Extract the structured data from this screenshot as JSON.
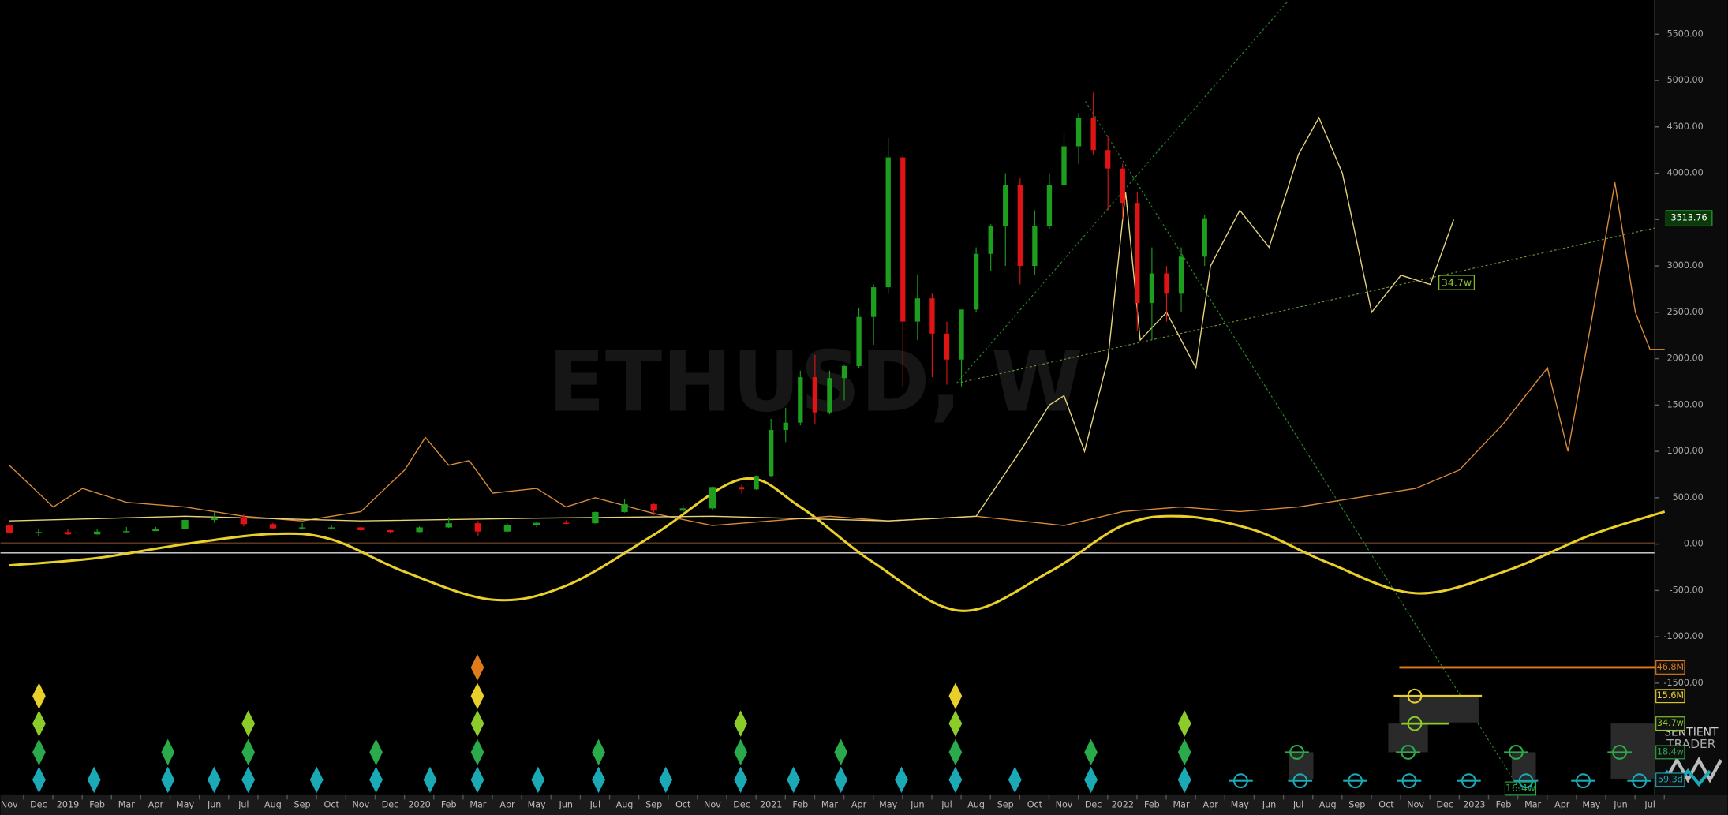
{
  "chart_data": {
    "type": "candlestick",
    "watermark": "ETHUSD, W",
    "logo": [
      "SENTIENT",
      "TRADER"
    ],
    "last_price_label": "3513.76",
    "categories": [
      "Nov",
      "Dec",
      "2019",
      "Feb",
      "Mar",
      "Apr",
      "May",
      "Jun",
      "Jul",
      "Aug",
      "Sep",
      "Oct",
      "Nov",
      "Dec",
      "2020",
      "Feb",
      "Mar",
      "Apr",
      "May",
      "Jun",
      "Jul",
      "Aug",
      "Sep",
      "Oct",
      "Nov",
      "Dec",
      "2021",
      "Feb",
      "Mar",
      "Apr",
      "May",
      "Jun",
      "Jul",
      "Aug",
      "Sep",
      "Oct",
      "Nov",
      "Dec",
      "2022",
      "Feb",
      "Mar",
      "Apr",
      "May",
      "Jun",
      "Jul",
      "Aug",
      "Sep",
      "Oct",
      "Nov",
      "Dec",
      "2023",
      "Feb",
      "Mar",
      "Apr",
      "May",
      "Jun",
      "Jul"
    ],
    "ylim": [
      -2600,
      5800
    ],
    "yticks": [
      {
        "value": 5500,
        "label": "5500.00"
      },
      {
        "value": 5000,
        "label": "5000.00"
      },
      {
        "value": 4500,
        "label": "4500.00"
      },
      {
        "value": 4000,
        "label": "4000.00"
      },
      {
        "value": 3500,
        "label": "3500.00"
      },
      {
        "value": 3000,
        "label": "3000.00"
      },
      {
        "value": 2500,
        "label": "2500.00"
      },
      {
        "value": 2000,
        "label": "2000.00"
      },
      {
        "value": 1500,
        "label": "1500.00"
      },
      {
        "value": 1000,
        "label": "1000.00"
      },
      {
        "value": 500,
        "label": "500.00"
      },
      {
        "value": 0,
        "label": "0.00"
      },
      {
        "value": -500,
        "label": "-500.00"
      },
      {
        "value": -1000,
        "label": "-1000.00"
      },
      {
        "value": -1500,
        "label": "-1500.00"
      }
    ],
    "up_color": "#1e9e1e",
    "down_color": "#e01414",
    "candles": [
      [
        0,
        200,
        230,
        110,
        120
      ],
      [
        1,
        120,
        160,
        85,
        130
      ],
      [
        2,
        130,
        160,
        100,
        105
      ],
      [
        3,
        105,
        165,
        100,
        135
      ],
      [
        4,
        135,
        185,
        125,
        140
      ],
      [
        5,
        140,
        185,
        140,
        160
      ],
      [
        6,
        160,
        290,
        155,
        260
      ],
      [
        7,
        260,
        360,
        230,
        290
      ],
      [
        8,
        290,
        320,
        190,
        215
      ],
      [
        9,
        215,
        230,
        165,
        170
      ],
      [
        10,
        170,
        225,
        155,
        180
      ],
      [
        11,
        180,
        200,
        155,
        180
      ],
      [
        12,
        180,
        190,
        130,
        150
      ],
      [
        13,
        150,
        155,
        115,
        130
      ],
      [
        14,
        130,
        190,
        125,
        180
      ],
      [
        15,
        180,
        290,
        175,
        225
      ],
      [
        16,
        225,
        250,
        90,
        135
      ],
      [
        17,
        135,
        220,
        130,
        205
      ],
      [
        18,
        205,
        245,
        180,
        230
      ],
      [
        19,
        230,
        255,
        215,
        225
      ],
      [
        20,
        225,
        350,
        220,
        345
      ],
      [
        21,
        345,
        490,
        340,
        430
      ],
      [
        22,
        430,
        440,
        310,
        360
      ],
      [
        23,
        360,
        420,
        335,
        385
      ],
      [
        24,
        385,
        620,
        370,
        615
      ],
      [
        25,
        615,
        640,
        540,
        590
      ],
      [
        25.5,
        590,
        740,
        585,
        735
      ],
      [
        26,
        735,
        1350,
        720,
        1230
      ],
      [
        26.5,
        1230,
        1470,
        1100,
        1310
      ],
      [
        27,
        1310,
        1870,
        1280,
        1800
      ],
      [
        27.5,
        1800,
        2040,
        1300,
        1420
      ],
      [
        28,
        1420,
        1870,
        1400,
        1790
      ],
      [
        28.5,
        1790,
        1940,
        1550,
        1920
      ],
      [
        29,
        1920,
        2550,
        1900,
        2450
      ],
      [
        29.5,
        2450,
        2800,
        2150,
        2770
      ],
      [
        30,
        2770,
        4380,
        2700,
        4170
      ],
      [
        30.5,
        4170,
        4200,
        1700,
        2400
      ],
      [
        31,
        2400,
        2900,
        2200,
        2650
      ],
      [
        31.5,
        2650,
        2700,
        1800,
        2270
      ],
      [
        32,
        2270,
        2400,
        1720,
        1990
      ],
      [
        32.5,
        1990,
        2450,
        1700,
        2530
      ],
      [
        33,
        2530,
        3200,
        2500,
        3130
      ],
      [
        33.5,
        3130,
        3450,
        2950,
        3430
      ],
      [
        34,
        3430,
        4000,
        3000,
        3870
      ],
      [
        34.5,
        3870,
        3950,
        2800,
        3000
      ],
      [
        35,
        3000,
        3600,
        2900,
        3430
      ],
      [
        35.5,
        3430,
        4000,
        3400,
        3870
      ],
      [
        36,
        3870,
        4450,
        3850,
        4290
      ],
      [
        36.5,
        4290,
        4650,
        4100,
        4600
      ],
      [
        37,
        4600,
        4870,
        4200,
        4250
      ],
      [
        37.5,
        4250,
        4400,
        3600,
        4050
      ],
      [
        38,
        4050,
        4100,
        3500,
        3680
      ],
      [
        38.5,
        3680,
        3800,
        2300,
        2600
      ],
      [
        39,
        2600,
        3200,
        2200,
        2920
      ],
      [
        39.5,
        2920,
        3000,
        2400,
        2700
      ],
      [
        40,
        2700,
        3200,
        2500,
        3100
      ],
      [
        40.8,
        3100,
        3550,
        3000,
        3513.76
      ]
    ],
    "series": [
      {
        "color": "#e8cf2a",
        "width": 2.2,
        "x": [
          0,
          3,
          6,
          9,
          11,
          13.5,
          16.5,
          19,
          22,
          25,
          27,
          29.5,
          32.5,
          35.5,
          38,
          40,
          42.5,
          45,
          48,
          51,
          54,
          56.5
        ],
        "values": [
          -230,
          -150,
          0,
          110,
          50,
          -300,
          -600,
          -450,
          100,
          700,
          400,
          -200,
          -720,
          -300,
          200,
          300,
          150,
          -200,
          -530,
          -300,
          100,
          350
        ]
      },
      {
        "color": "#d98a3a",
        "width": 1,
        "x": [
          0,
          1.5,
          2.5,
          4,
          6,
          8,
          10,
          12,
          13.5,
          14.2,
          15,
          15.7,
          16.5,
          18,
          19,
          20,
          22,
          24,
          26,
          28,
          30,
          33,
          36,
          38,
          40,
          42,
          44,
          46,
          48,
          49.5,
          51,
          52.5,
          53.2,
          54,
          54.8,
          55.5,
          56,
          56.5
        ],
        "values": [
          850,
          400,
          600,
          450,
          400,
          300,
          250,
          350,
          800,
          1150,
          850,
          900,
          550,
          600,
          400,
          500,
          330,
          200,
          250,
          300,
          250,
          300,
          200,
          350,
          400,
          350,
          400,
          500,
          600,
          800,
          1300,
          1900,
          1000,
          2400,
          3900,
          2500,
          2100,
          2100
        ]
      },
      {
        "color": "#e6d37a",
        "width": 1,
        "x": [
          0,
          6,
          12,
          18,
          24,
          30,
          33,
          34.5,
          35.5,
          36,
          36.7,
          37.5,
          38.1,
          38.6,
          39.5,
          40.5,
          41,
          42,
          43,
          44,
          44.7,
          45.5,
          46.5,
          47.5,
          48.5,
          49.3
        ],
        "values": [
          250,
          300,
          250,
          280,
          300,
          250,
          300,
          1000,
          1500,
          1600,
          1000,
          2000,
          3800,
          2200,
          2500,
          1900,
          3000,
          3600,
          3200,
          4200,
          4600,
          4000,
          2500,
          2900,
          2800,
          3500
        ]
      }
    ],
    "cycle_labels": [
      {
        "label": "46.8M",
        "color": "#e07a1a"
      },
      {
        "label": "15.6M",
        "color": "#e8cf2a"
      },
      {
        "label": "34.7w",
        "color": "#8ccc2a"
      },
      {
        "label": "18.4w",
        "color": "#2aaa4a"
      },
      {
        "label": "59.3d",
        "color": "#1aa9b5"
      }
    ],
    "annotations": [
      "34.7w",
      "16.4w"
    ]
  }
}
